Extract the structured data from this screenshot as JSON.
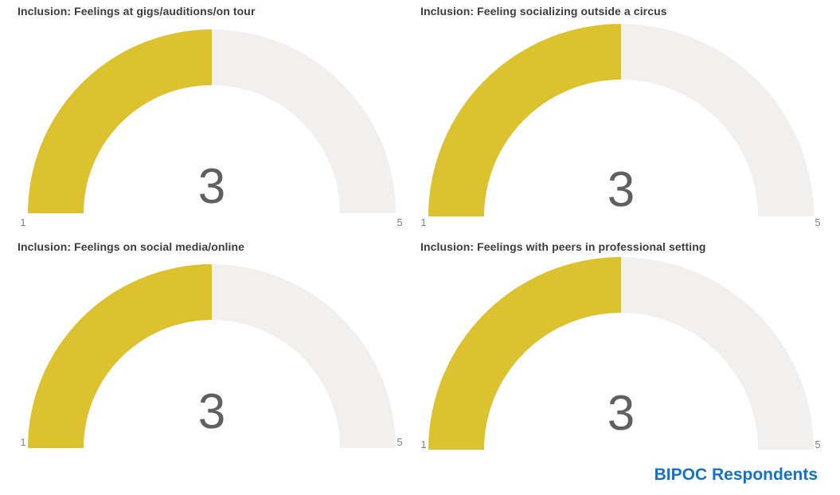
{
  "colors": {
    "gauge_fill": "#DDC22F",
    "gauge_track": "#F1F0EE",
    "value_text": "#606060",
    "minmax_text": "#808080",
    "title_text": "#3C3C3C",
    "footer_text": "#1373C8",
    "background": "#FFFFFF"
  },
  "footer": {
    "label": "BIPOC Respondents"
  },
  "chart_data": [
    {
      "type": "gauge",
      "title": "Inclusion: Feelings at gigs/auditions/on tour",
      "value": 3,
      "min": 1,
      "max": 5,
      "value_label": "3",
      "min_label": "1",
      "max_label": "5"
    },
    {
      "type": "gauge",
      "title": "Inclusion: Feeling socializing outside a circus",
      "value": 3,
      "min": 1,
      "max": 5,
      "value_label": "3",
      "min_label": "1",
      "max_label": "5"
    },
    {
      "type": "gauge",
      "title": "Inclusion: Feelings on social media/online",
      "value": 3,
      "min": 1,
      "max": 5,
      "value_label": "3",
      "min_label": "1",
      "max_label": "5"
    },
    {
      "type": "gauge",
      "title": "Inclusion: Feelings with peers in professional setting",
      "value": 3,
      "min": 1,
      "max": 5,
      "value_label": "3",
      "min_label": "1",
      "max_label": "5"
    }
  ]
}
